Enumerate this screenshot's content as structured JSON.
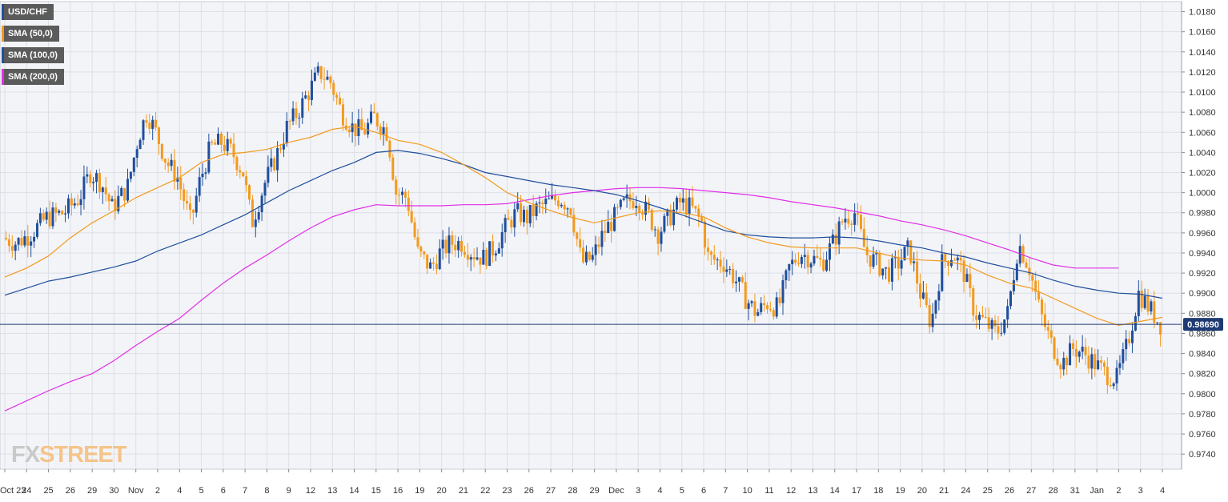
{
  "legend": [
    {
      "label": "USD/CHF",
      "color": "#1f4e9c"
    },
    {
      "label": "SMA (50,0)",
      "color": "#f39a1e"
    },
    {
      "label": "SMA (100,0)",
      "color": "#1f4e9c"
    },
    {
      "label": "SMA (200,0)",
      "color": "#e12ee6"
    }
  ],
  "logo": {
    "part1": "FX",
    "part2": "STREET"
  },
  "chart_data": {
    "type": "candlestick",
    "instrument": "USD/CHF",
    "ylim": [
      0.9725,
      1.019
    ],
    "y_ticks": [
      "1.0180",
      "1.0160",
      "1.0140",
      "1.0120",
      "1.0100",
      "1.0080",
      "1.0060",
      "1.0040",
      "1.0020",
      "1.0000",
      "0.9980",
      "0.9960",
      "0.9940",
      "0.9920",
      "0.9900",
      "0.9880",
      "0.9860",
      "0.9840",
      "0.9820",
      "0.9800",
      "0.9780",
      "0.9760",
      "0.9740"
    ],
    "x_labels": [
      "Oct 23",
      "24",
      "25",
      "26",
      "29",
      "30",
      "Nov",
      "2",
      "4",
      "5",
      "6",
      "7",
      "8",
      "9",
      "12",
      "13",
      "14",
      "15",
      "16",
      "19",
      "20",
      "21",
      "22",
      "23",
      "26",
      "27",
      "28",
      "29",
      "Dec",
      "3",
      "4",
      "5",
      "6",
      "7",
      "10",
      "11",
      "12",
      "13",
      "14",
      "17",
      "18",
      "19",
      "20",
      "21",
      "24",
      "25",
      "26",
      "27",
      "28",
      "31",
      "Jan",
      "2",
      "3",
      "4"
    ],
    "current_price": 0.9869,
    "current_price_label": "0.98690",
    "colors": {
      "up": "#1f4e9c",
      "down": "#f39a1e",
      "sma50": "#f39a1e",
      "sma100": "#1f4e9c",
      "sma200": "#e12ee6",
      "grid": "#dcdfe6",
      "plot_bg": "#f3f4f8"
    },
    "close_path": [
      [
        0,
        0.9955
      ],
      [
        0.6,
        0.995
      ],
      [
        1.2,
        0.9958
      ],
      [
        2,
        0.9975
      ],
      [
        2.8,
        0.998
      ],
      [
        3.5,
        0.9995
      ],
      [
        4,
        1.002
      ],
      [
        4.5,
        1.001
      ],
      [
        5,
        0.9985
      ],
      [
        5.7,
        1.0005
      ],
      [
        6.2,
        1.0055
      ],
      [
        6.6,
        1.008
      ],
      [
        7,
        1.006
      ],
      [
        7.5,
        1.003
      ],
      [
        8,
        1.0015
      ],
      [
        8.6,
        0.997
      ],
      [
        9,
        1.001
      ],
      [
        9.5,
        1.0045
      ],
      [
        10,
        1.005
      ],
      [
        10.5,
        1.004
      ],
      [
        11,
        1.002
      ],
      [
        11.4,
        0.997
      ],
      [
        12,
        1.001
      ],
      [
        12.5,
        1.0035
      ],
      [
        13,
        1.0065
      ],
      [
        13.5,
        1.008
      ],
      [
        14,
        1.01
      ],
      [
        14.5,
        1.012
      ],
      [
        15,
        1.011
      ],
      [
        15.5,
        1.008
      ],
      [
        16,
        1.0065
      ],
      [
        16.5,
        1.006
      ],
      [
        17,
        1.0075
      ],
      [
        17.6,
        1.006
      ],
      [
        18,
        1.0
      ],
      [
        18.5,
        0.9995
      ],
      [
        19,
        0.994
      ],
      [
        19.6,
        0.9925
      ],
      [
        20,
        0.994
      ],
      [
        20.5,
        0.995
      ],
      [
        21,
        0.995
      ],
      [
        21.5,
        0.994
      ],
      [
        22,
        0.9935
      ],
      [
        22.5,
        0.9945
      ],
      [
        23,
        0.9965
      ],
      [
        23.5,
        0.998
      ],
      [
        24,
        0.9975
      ],
      [
        24.5,
        0.9985
      ],
      [
        25,
        0.999
      ],
      [
        25.5,
        0.9995
      ],
      [
        26,
        0.9985
      ],
      [
        26.5,
        0.993
      ],
      [
        27,
        0.9935
      ],
      [
        27.5,
        0.996
      ],
      [
        28,
        0.9975
      ],
      [
        28.5,
        0.999
      ],
      [
        29,
        0.9995
      ],
      [
        29.5,
        0.998
      ],
      [
        30,
        0.996
      ],
      [
        30.5,
        0.9975
      ],
      [
        31,
        0.999
      ],
      [
        31.5,
        0.9985
      ],
      [
        32,
        0.997
      ],
      [
        32.3,
        0.9935
      ],
      [
        33,
        0.993
      ],
      [
        33.5,
        0.9915
      ],
      [
        34,
        0.9895
      ],
      [
        34.5,
        0.988
      ],
      [
        35,
        0.989
      ],
      [
        35.5,
        0.9885
      ],
      [
        36,
        0.9925
      ],
      [
        36.5,
        0.994
      ],
      [
        37,
        0.9935
      ],
      [
        37.5,
        0.993
      ],
      [
        38,
        0.995
      ],
      [
        38.5,
        0.9975
      ],
      [
        39,
        0.998
      ],
      [
        39.5,
        0.994
      ],
      [
        40,
        0.993
      ],
      [
        40.5,
        0.992
      ],
      [
        41,
        0.993
      ],
      [
        41.5,
        0.9945
      ],
      [
        42,
        0.99
      ],
      [
        42.5,
        0.987
      ],
      [
        43,
        0.993
      ],
      [
        43.5,
        0.994
      ],
      [
        44,
        0.992
      ],
      [
        44.5,
        0.988
      ],
      [
        45,
        0.987
      ],
      [
        45.5,
        0.986
      ],
      [
        46,
        0.988
      ],
      [
        46.5,
        0.995
      ],
      [
        47,
        0.9925
      ],
      [
        47.5,
        0.988
      ],
      [
        48,
        0.985
      ],
      [
        48.5,
        0.983
      ],
      [
        49,
        0.9845
      ],
      [
        49.5,
        0.984
      ],
      [
        50,
        0.983
      ],
      [
        50.5,
        0.982
      ],
      [
        51,
        0.9815
      ],
      [
        51.5,
        0.985
      ],
      [
        52,
        0.99
      ],
      [
        52.5,
        0.9885
      ],
      [
        53,
        0.9869
      ]
    ],
    "sma50": [
      [
        0,
        0.9916
      ],
      [
        1,
        0.9925
      ],
      [
        2,
        0.9937
      ],
      [
        3,
        0.9955
      ],
      [
        4,
        0.997
      ],
      [
        5,
        0.9982
      ],
      [
        6,
        0.9995
      ],
      [
        7,
        1.0005
      ],
      [
        8,
        1.0015
      ],
      [
        9,
        1.003
      ],
      [
        10,
        1.0038
      ],
      [
        11,
        1.004
      ],
      [
        12,
        1.0043
      ],
      [
        13,
        1.005
      ],
      [
        14,
        1.0055
      ],
      [
        15,
        1.0063
      ],
      [
        16,
        1.0066
      ],
      [
        17,
        1.006
      ],
      [
        18,
        1.0052
      ],
      [
        19,
        1.0048
      ],
      [
        20,
        1.004
      ],
      [
        21,
        1.0028
      ],
      [
        22,
        1.0015
      ],
      [
        23,
        1.0
      ],
      [
        24,
        0.999
      ],
      [
        25,
        0.9982
      ],
      [
        26,
        0.9975
      ],
      [
        27,
        0.997
      ],
      [
        28,
        0.9975
      ],
      [
        29,
        0.998
      ],
      [
        30,
        0.9982
      ],
      [
        31,
        0.998
      ],
      [
        32,
        0.9976
      ],
      [
        33,
        0.9965
      ],
      [
        34,
        0.9956
      ],
      [
        35,
        0.995
      ],
      [
        36,
        0.9946
      ],
      [
        37,
        0.9945
      ],
      [
        38,
        0.9945
      ],
      [
        39,
        0.9945
      ],
      [
        40,
        0.994
      ],
      [
        41,
        0.9935
      ],
      [
        42,
        0.9933
      ],
      [
        43,
        0.9932
      ],
      [
        44,
        0.9928
      ],
      [
        45,
        0.9918
      ],
      [
        46,
        0.991
      ],
      [
        47,
        0.9905
      ],
      [
        48,
        0.9895
      ],
      [
        49,
        0.9885
      ],
      [
        50,
        0.9875
      ],
      [
        51,
        0.9868
      ],
      [
        52,
        0.9872
      ],
      [
        53,
        0.9876
      ]
    ],
    "sma100": [
      [
        0,
        0.9898
      ],
      [
        1,
        0.9905
      ],
      [
        2,
        0.9912
      ],
      [
        3,
        0.9916
      ],
      [
        4,
        0.9921
      ],
      [
        5,
        0.9926
      ],
      [
        6,
        0.9932
      ],
      [
        7,
        0.9942
      ],
      [
        8,
        0.995
      ],
      [
        9,
        0.9958
      ],
      [
        10,
        0.9968
      ],
      [
        11,
        0.9978
      ],
      [
        12,
        0.999
      ],
      [
        13,
        1.0002
      ],
      [
        14,
        1.0012
      ],
      [
        15,
        1.0022
      ],
      [
        16,
        1.003
      ],
      [
        17,
        1.004
      ],
      [
        18,
        1.0042
      ],
      [
        19,
        1.0039
      ],
      [
        20,
        1.0034
      ],
      [
        21,
        1.0028
      ],
      [
        22,
        1.002
      ],
      [
        23,
        1.0016
      ],
      [
        24,
        1.0012
      ],
      [
        25,
        1.0008
      ],
      [
        26,
        1.0005
      ],
      [
        27,
        1.0002
      ],
      [
        28,
        0.9998
      ],
      [
        29,
        0.9992
      ],
      [
        30,
        0.9985
      ],
      [
        31,
        0.9978
      ],
      [
        32,
        0.997
      ],
      [
        33,
        0.9962
      ],
      [
        34,
        0.9958
      ],
      [
        35,
        0.9956
      ],
      [
        36,
        0.9955
      ],
      [
        37,
        0.9955
      ],
      [
        38,
        0.9956
      ],
      [
        39,
        0.9955
      ],
      [
        40,
        0.9952
      ],
      [
        41,
        0.9948
      ],
      [
        42,
        0.9945
      ],
      [
        43,
        0.994
      ],
      [
        44,
        0.9936
      ],
      [
        45,
        0.993
      ],
      [
        46,
        0.9925
      ],
      [
        47,
        0.992
      ],
      [
        48,
        0.9913
      ],
      [
        49,
        0.9907
      ],
      [
        50,
        0.9903
      ],
      [
        51,
        0.99
      ],
      [
        52,
        0.9899
      ],
      [
        53,
        0.9895
      ]
    ],
    "sma200": [
      [
        0,
        0.9783
      ],
      [
        1,
        0.9793
      ],
      [
        2,
        0.9803
      ],
      [
        3,
        0.9812
      ],
      [
        4,
        0.982
      ],
      [
        5,
        0.9833
      ],
      [
        6,
        0.9848
      ],
      [
        7,
        0.9862
      ],
      [
        8,
        0.9875
      ],
      [
        9,
        0.9893
      ],
      [
        10,
        0.991
      ],
      [
        11,
        0.9925
      ],
      [
        12,
        0.9938
      ],
      [
        13,
        0.9952
      ],
      [
        14,
        0.9965
      ],
      [
        15,
        0.9976
      ],
      [
        16,
        0.9983
      ],
      [
        17,
        0.9988
      ],
      [
        18,
        0.9987
      ],
      [
        19,
        0.9987
      ],
      [
        20,
        0.9987
      ],
      [
        21,
        0.9988
      ],
      [
        22,
        0.9988
      ],
      [
        23,
        0.9989
      ],
      [
        24,
        0.9993
      ],
      [
        25,
        0.9997
      ],
      [
        26,
        1.0
      ],
      [
        27,
        1.0002
      ],
      [
        28,
        1.0004
      ],
      [
        29,
        1.0005
      ],
      [
        30,
        1.0005
      ],
      [
        31,
        1.0004
      ],
      [
        32,
        1.0002
      ],
      [
        33,
        1.0
      ],
      [
        34,
        0.9998
      ],
      [
        35,
        0.9995
      ],
      [
        36,
        0.9991
      ],
      [
        37,
        0.9988
      ],
      [
        38,
        0.9985
      ],
      [
        39,
        0.9981
      ],
      [
        40,
        0.9977
      ],
      [
        41,
        0.9972
      ],
      [
        42,
        0.9968
      ],
      [
        43,
        0.9963
      ],
      [
        44,
        0.9957
      ],
      [
        45,
        0.995
      ],
      [
        46,
        0.9943
      ],
      [
        47,
        0.9935
      ],
      [
        48,
        0.9928
      ],
      [
        49,
        0.9925
      ],
      [
        50,
        0.9925
      ],
      [
        51,
        0.9925
      ]
    ]
  }
}
